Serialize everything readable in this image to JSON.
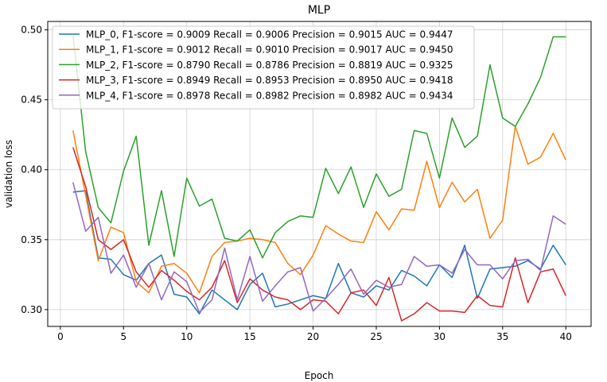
{
  "chart_data": {
    "type": "line",
    "title": "MLP",
    "xlabel": "Epoch",
    "ylabel": "validation loss",
    "xlim": [
      -1,
      42
    ],
    "ylim": [
      0.288,
      0.506
    ],
    "xticks": [
      0,
      5,
      10,
      15,
      20,
      25,
      30,
      35,
      40
    ],
    "yticks": [
      0.3,
      0.35,
      0.4,
      0.45,
      0.5
    ],
    "ytick_labels": [
      "0.30",
      "0.35",
      "0.40",
      "0.45",
      "0.50"
    ],
    "grid": true,
    "legend_position": "top-left",
    "x": [
      1,
      2,
      3,
      4,
      5,
      6,
      7,
      8,
      9,
      10,
      11,
      12,
      13,
      14,
      15,
      16,
      17,
      18,
      19,
      20,
      21,
      22,
      23,
      24,
      25,
      26,
      27,
      28,
      29,
      30,
      31,
      32,
      33,
      34,
      35,
      36,
      37,
      38,
      39,
      40
    ],
    "series": [
      {
        "name": "MLP_0,  F1-score = 0.9009 Recall = 0.9006 Precision = 0.9015 AUC = 0.9447",
        "color": "#1f77b4",
        "values": [
          0.384,
          0.385,
          0.337,
          0.336,
          0.325,
          0.321,
          0.333,
          0.339,
          0.311,
          0.309,
          0.297,
          0.314,
          0.307,
          0.3,
          0.318,
          0.326,
          0.302,
          0.304,
          0.307,
          0.31,
          0.308,
          0.333,
          0.312,
          0.309,
          0.317,
          0.314,
          0.328,
          0.324,
          0.317,
          0.332,
          0.323,
          0.346,
          0.308,
          0.329,
          0.33,
          0.331,
          0.335,
          0.329,
          0.346,
          0.332
        ]
      },
      {
        "name": "MLP_1,  F1-score = 0.9012 Recall = 0.9010 Precision = 0.9017 AUC = 0.9450",
        "color": "#ff7f0e",
        "values": [
          0.428,
          0.382,
          0.335,
          0.359,
          0.355,
          0.32,
          0.312,
          0.331,
          0.333,
          0.326,
          0.312,
          0.338,
          0.348,
          0.349,
          0.351,
          0.35,
          0.348,
          0.333,
          0.325,
          0.339,
          0.36,
          0.354,
          0.349,
          0.348,
          0.37,
          0.357,
          0.372,
          0.371,
          0.406,
          0.373,
          0.391,
          0.377,
          0.386,
          0.351,
          0.364,
          0.431,
          0.404,
          0.409,
          0.426,
          0.407
        ]
      },
      {
        "name": "MLP_2,  F1-score = 0.8790 Recall = 0.8786 Precision = 0.8819 AUC = 0.9325",
        "color": "#2ca02c",
        "values": [
          0.496,
          0.413,
          0.373,
          0.362,
          0.399,
          0.424,
          0.346,
          0.385,
          0.338,
          0.394,
          0.374,
          0.379,
          0.351,
          0.349,
          0.357,
          0.337,
          0.355,
          0.363,
          0.367,
          0.366,
          0.401,
          0.383,
          0.402,
          0.373,
          0.397,
          0.381,
          0.386,
          0.428,
          0.426,
          0.394,
          0.437,
          0.416,
          0.424,
          0.475,
          0.437,
          0.431,
          0.447,
          0.466,
          0.495,
          0.495
        ]
      },
      {
        "name": "MLP_3,  F1-score = 0.8949 Recall = 0.8953 Precision = 0.8950 AUC = 0.9418",
        "color": "#d62728",
        "values": [
          0.416,
          0.388,
          0.35,
          0.343,
          0.35,
          0.327,
          0.316,
          0.328,
          0.321,
          0.313,
          0.307,
          0.316,
          0.335,
          0.305,
          0.322,
          0.314,
          0.309,
          0.307,
          0.3,
          0.307,
          0.306,
          0.297,
          0.312,
          0.314,
          0.303,
          0.323,
          0.292,
          0.297,
          0.305,
          0.299,
          0.299,
          0.298,
          0.31,
          0.303,
          0.302,
          0.337,
          0.305,
          0.327,
          0.329,
          0.31
        ]
      },
      {
        "name": "MLP_4,  F1-score = 0.8978 Recall = 0.8982 Precision = 0.8982 AUC = 0.9434",
        "color": "#9467bd",
        "values": [
          0.391,
          0.356,
          0.366,
          0.326,
          0.339,
          0.316,
          0.333,
          0.307,
          0.327,
          0.32,
          0.298,
          0.307,
          0.344,
          0.307,
          0.338,
          0.306,
          0.317,
          0.327,
          0.33,
          0.299,
          0.308,
          0.318,
          0.329,
          0.311,
          0.321,
          0.316,
          0.318,
          0.338,
          0.331,
          0.332,
          0.326,
          0.343,
          0.332,
          0.332,
          0.322,
          0.335,
          0.336,
          0.328,
          0.367,
          0.361
        ]
      }
    ]
  }
}
